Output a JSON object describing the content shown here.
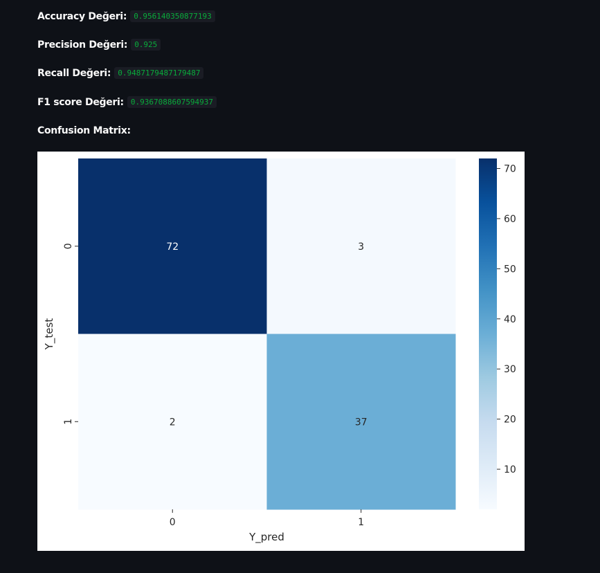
{
  "metrics": [
    {
      "label": "Accuracy Değeri:",
      "value": "0.956140350877193"
    },
    {
      "label": "Precision Değeri:",
      "value": "0.925"
    },
    {
      "label": "Recall Değeri:",
      "value": "0.9487179487179487"
    },
    {
      "label": "F1 score Değeri:",
      "value": "0.9367088607594937"
    }
  ],
  "confusion_title": "Confusion Matrix:",
  "chart_data": {
    "type": "heatmap",
    "title": "",
    "xlabel": "Y_pred",
    "ylabel": "Y_test",
    "x_categories": [
      "0",
      "1"
    ],
    "y_categories": [
      "0",
      "1"
    ],
    "values": [
      [
        72,
        3
      ],
      [
        2,
        37
      ]
    ],
    "colormap": "Blues",
    "colorbar_ticks": [
      10,
      20,
      30,
      40,
      50,
      60,
      70
    ],
    "colorbar_range": [
      2,
      72
    ],
    "annotations": true
  }
}
